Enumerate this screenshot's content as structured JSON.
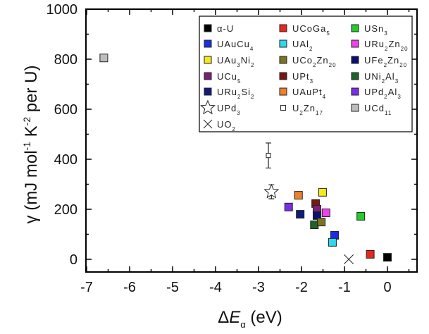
{
  "chart_data": {
    "type": "scatter",
    "title": "",
    "xlabel": "ΔE_α (eV)",
    "xlabel_parts": {
      "delta": "Δ",
      "var": "E",
      "sub": "α",
      "unit": " (eV)"
    },
    "ylabel": "γ (mJ mol^-1 K^-2 per U)",
    "ylabel_parts": {
      "gamma": "γ",
      "a": " (mJ mol",
      "sup1": "-1",
      "b": " K",
      "sup2": "-2",
      "c": " per U)"
    },
    "xlim": [
      -7,
      0.7
    ],
    "ylim": [
      -50,
      1000
    ],
    "xticks": [
      -7,
      -6,
      -5,
      -4,
      -3,
      -2,
      -1,
      0
    ],
    "yticks": [
      0,
      200,
      400,
      600,
      800,
      1000
    ],
    "grid": false,
    "legend_position": "upper right",
    "series": [
      {
        "name": "α-U",
        "label": "α-U",
        "sub": "",
        "label2": "",
        "sub2": "",
        "marker": "square",
        "color": "#000000",
        "x": 0.0,
        "y": 8
      },
      {
        "name": "UAuCu4",
        "label": "UAuCu",
        "sub": "4",
        "label2": "",
        "sub2": "",
        "marker": "square",
        "color": "#1a2ee6",
        "x": -1.23,
        "y": 96
      },
      {
        "name": "UAu3Ni2",
        "label": "UAu",
        "sub": "3",
        "label2": "Ni",
        "sub2": "2",
        "marker": "square",
        "color": "#f5e81c",
        "x": -1.51,
        "y": 268
      },
      {
        "name": "UCu5",
        "label": "UCu",
        "sub": "5",
        "label2": "",
        "sub2": "",
        "marker": "square",
        "color": "#7d1f78",
        "x": -1.64,
        "y": 200
      },
      {
        "name": "URu2Si2",
        "label": "URu",
        "sub": "2",
        "label2": "Si",
        "sub2": "2",
        "marker": "square",
        "color": "#0d1a80",
        "x": -2.03,
        "y": 180
      },
      {
        "name": "UPd3",
        "label": "UPd",
        "sub": "3",
        "label2": "",
        "sub2": "",
        "marker": "star",
        "color": "#ffffff",
        "x": -2.7,
        "y": 270,
        "yerr": 28
      },
      {
        "name": "UO2",
        "label": "UO",
        "sub": "2",
        "label2": "",
        "sub2": "",
        "marker": "x",
        "color": "#000000",
        "x": -0.9,
        "y": 0
      },
      {
        "name": "UCoGa5",
        "label": "UCoGa",
        "sub": "5",
        "label2": "",
        "sub2": "",
        "marker": "square",
        "color": "#e6281a",
        "x": -0.4,
        "y": 20
      },
      {
        "name": "UAl2",
        "label": "UAl",
        "sub": "2",
        "label2": "",
        "sub2": "",
        "marker": "square",
        "color": "#2ed8ee",
        "x": -1.28,
        "y": 68
      },
      {
        "name": "UCo2Zn20",
        "label": "UCo",
        "sub": "2",
        "label2": "Zn",
        "sub2": "20",
        "marker": "square",
        "color": "#7a7320",
        "x": -1.54,
        "y": 149
      },
      {
        "name": "UPt3",
        "label": "UPt",
        "sub": "3",
        "label2": "",
        "sub2": "",
        "marker": "square",
        "color": "#7a1510",
        "x": -1.67,
        "y": 223
      },
      {
        "name": "UAuPt4",
        "label": "UAuPt",
        "sub": "4",
        "label2": "",
        "sub2": "",
        "marker": "square",
        "color": "#f0802a",
        "x": -2.07,
        "y": 256
      },
      {
        "name": "U2Zn17",
        "label": "U",
        "sub": "2",
        "label2": "Zn",
        "sub2": "17",
        "marker": "small-square",
        "color": "#ffffff",
        "x": -2.77,
        "y": 415,
        "yerr": 50
      },
      {
        "name": "USn3",
        "label": "USn",
        "sub": "3",
        "label2": "",
        "sub2": "",
        "marker": "square",
        "color": "#22cc2a",
        "x": -0.62,
        "y": 172
      },
      {
        "name": "URu2Zn20",
        "label": "URu",
        "sub": "2",
        "label2": "Zn",
        "sub2": "20",
        "marker": "square",
        "color": "#f040e8",
        "x": -1.43,
        "y": 186
      },
      {
        "name": "UFe2Zn20",
        "label": "UFe",
        "sub": "2",
        "label2": "Zn",
        "sub2": "20",
        "marker": "square",
        "color": "#0a1070",
        "x": -1.64,
        "y": 175
      },
      {
        "name": "UNi2Al3",
        "label": "UNi",
        "sub": "2",
        "label2": "Al",
        "sub2": "3",
        "marker": "square",
        "color": "#1c6428",
        "x": -1.7,
        "y": 138
      },
      {
        "name": "UPd2Al3",
        "label": "UPd",
        "sub": "2",
        "label2": "Al",
        "sub2": "3",
        "marker": "square",
        "color": "#7a2ee8",
        "x": -2.3,
        "y": 209
      },
      {
        "name": "UCd11",
        "label": "UCd",
        "sub": "11",
        "label2": "",
        "sub2": "",
        "marker": "square",
        "color": "#bdbdbd",
        "x": -6.6,
        "y": 805
      }
    ],
    "legend_order": [
      [
        "α-U",
        "UAuCu4",
        "UAu3Ni2",
        "UCu5",
        "URu2Si2",
        "UPd3",
        "UO2"
      ],
      [
        "UCoGa5",
        "UAl2",
        "UCo2Zn20",
        "UPt3",
        "UAuPt4",
        "U2Zn17"
      ],
      [
        "USn3",
        "URu2Zn20",
        "UFe2Zn20",
        "UNi2Al3",
        "UPd2Al3",
        "UCd11"
      ]
    ],
    "plot_order": [
      "UCd11",
      "U2Zn17",
      "UPd3",
      "UPd2Al3",
      "URu2Si2",
      "UAuPt4",
      "UAu3Ni2",
      "UPt3",
      "UCu5",
      "UFe2Zn20",
      "URu2Zn20",
      "UNi2Al3",
      "UCo2Zn20",
      "USn3",
      "UAuCu4",
      "UAl2",
      "UO2",
      "UCoGa5",
      "α-U"
    ]
  }
}
